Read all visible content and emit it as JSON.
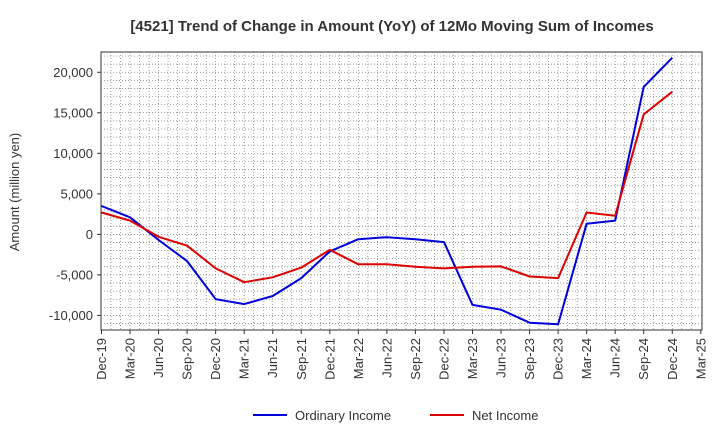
{
  "chart_data": {
    "type": "line",
    "title": "[4521]  Trend of Change in Amount (YoY) of 12Mo Moving Sum of Incomes",
    "xlabel": "",
    "ylabel": "Amount (million yen)",
    "ylim": [
      -11800,
      22500
    ],
    "yticks": [
      -10000,
      -5000,
      0,
      5000,
      10000,
      15000,
      20000
    ],
    "ytick_labels": [
      "-10,000",
      "-5,000",
      "0",
      "5,000",
      "10,000",
      "15,000",
      "20,000"
    ],
    "categories": [
      "Dec-19",
      "Mar-20",
      "Jun-20",
      "Sep-20",
      "Dec-20",
      "Mar-21",
      "Jun-21",
      "Sep-21",
      "Dec-21",
      "Mar-22",
      "Jun-22",
      "Sep-22",
      "Dec-22",
      "Mar-23",
      "Jun-23",
      "Sep-23",
      "Dec-23",
      "Mar-24",
      "Jun-24",
      "Sep-24",
      "Dec-24",
      "Mar-25"
    ],
    "grid": true,
    "legend_position": "bottom",
    "series": [
      {
        "name": "Ordinary Income",
        "color": "#0000dd",
        "values": [
          3500,
          2100,
          -700,
          -3300,
          -8000,
          -8600,
          -7600,
          -5400,
          -2100,
          -600,
          -350,
          -600,
          -950,
          -8700,
          -9300,
          -10900,
          -11100,
          1300,
          1700,
          18200,
          21800,
          null
        ]
      },
      {
        "name": "Net Income",
        "color": "#dd0000",
        "values": [
          2700,
          1700,
          -300,
          -1400,
          -4200,
          -5900,
          -5300,
          -4100,
          -1900,
          -3700,
          -3700,
          -4000,
          -4200,
          -4000,
          -3950,
          -5200,
          -5400,
          2700,
          2300,
          14800,
          17600,
          null
        ]
      }
    ]
  }
}
